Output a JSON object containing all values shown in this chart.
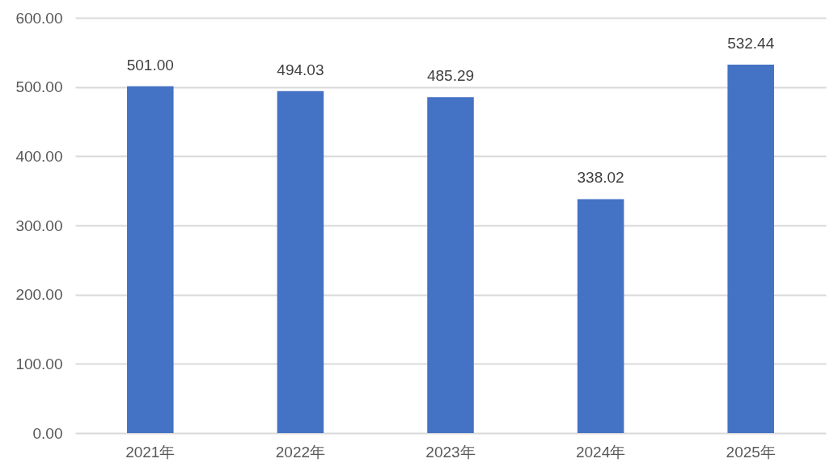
{
  "chart_data": {
    "type": "bar",
    "categories": [
      "2021年",
      "2022年",
      "2023年",
      "2024年",
      "2025年"
    ],
    "values": [
      501.0,
      494.03,
      485.29,
      338.02,
      532.44
    ],
    "value_labels": [
      "501.00",
      "494.03",
      "485.29",
      "338.02",
      "532.44"
    ],
    "color": "#4472c4",
    "ylim": [
      0,
      600
    ],
    "yticks": [
      {
        "value": 0,
        "label": "0.00"
      },
      {
        "value": 100,
        "label": "100.00"
      },
      {
        "value": 200,
        "label": "200.00"
      },
      {
        "value": 300,
        "label": "300.00"
      },
      {
        "value": 400,
        "label": "400.00"
      },
      {
        "value": 500,
        "label": "500.00"
      },
      {
        "value": 600,
        "label": "600.00"
      }
    ],
    "grid": "y"
  }
}
